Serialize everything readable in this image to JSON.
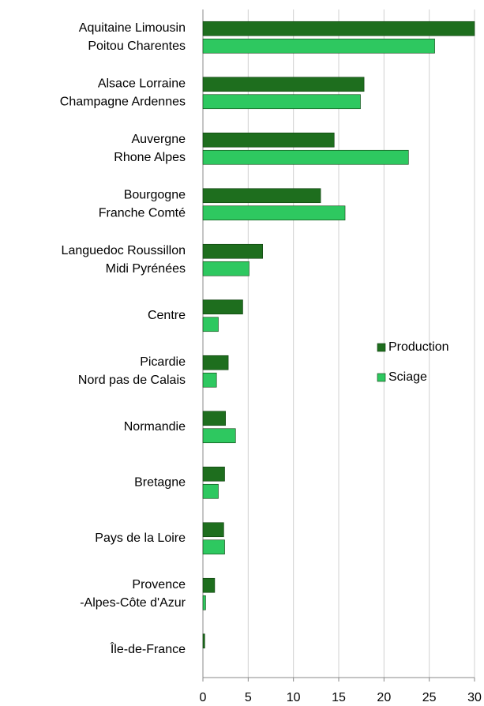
{
  "chart_data": {
    "type": "hbar",
    "categories": [
      [
        "Aquitaine Limousin",
        "Poitou Charentes"
      ],
      [
        "Alsace Lorraine",
        "Champagne Ardennes"
      ],
      [
        "Auvergne",
        "Rhone Alpes"
      ],
      [
        "Bourgogne",
        "Franche Comté"
      ],
      [
        "Languedoc Roussillon",
        "Midi Pyrénées"
      ],
      [
        "Centre"
      ],
      [
        "Picardie",
        "Nord pas de Calais"
      ],
      [
        "Normandie"
      ],
      [
        "Bretagne"
      ],
      [
        "Pays de la Loire"
      ],
      [
        "Provence",
        "-Alpes-Côte d'Azur"
      ],
      [
        "Île-de-France"
      ]
    ],
    "series": [
      {
        "name": "Production",
        "color": "#1e6e1e",
        "values": [
          30,
          17.8,
          14.5,
          13.0,
          6.6,
          4.4,
          2.8,
          2.5,
          2.4,
          2.3,
          1.3,
          0.2
        ]
      },
      {
        "name": "Sciage",
        "color": "#2ec860",
        "values": [
          25.6,
          17.4,
          22.7,
          15.7,
          5.1,
          1.7,
          1.5,
          3.6,
          1.7,
          2.4,
          0.3,
          0
        ]
      }
    ],
    "xlim": [
      0,
      30
    ],
    "xticks": [
      0,
      5,
      10,
      15,
      20,
      25,
      30
    ],
    "grid": true,
    "legend": "right"
  }
}
